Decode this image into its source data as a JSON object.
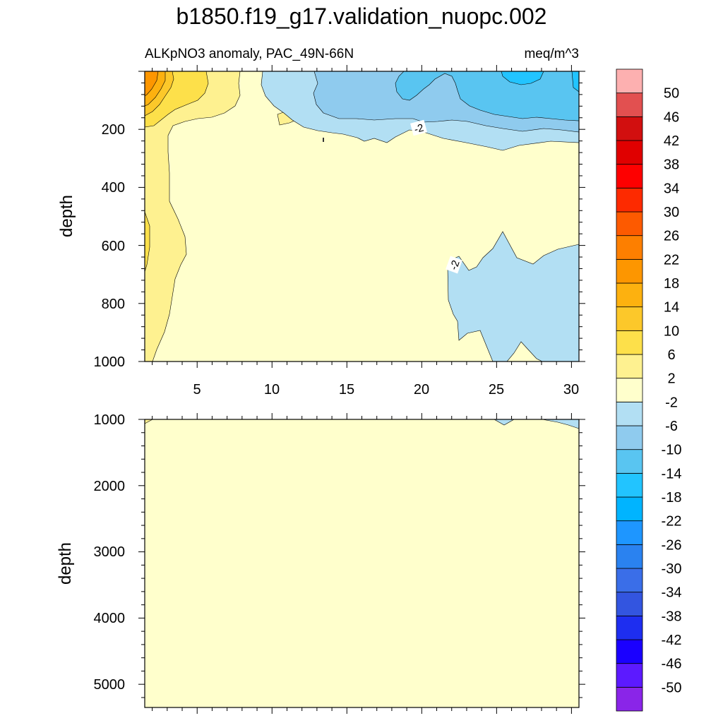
{
  "chart_data": {
    "type": "contour",
    "title": "b1850.f19_g17.validation_nuopc.002",
    "colors": [
      "#8a25e8",
      "#5c1aff",
      "#1a00ff",
      "#1e2ef0",
      "#3355e0",
      "#3a6ee8",
      "#2a82f0",
      "#1e96ff",
      "#00b4ff",
      "#22c4ff",
      "#59c5f1",
      "#8fcbee",
      "#b2dff3",
      "#ffffcc",
      "#fef190",
      "#fde04a",
      "#fcc82a",
      "#fdb10f",
      "#fd9600",
      "#fd7f00",
      "#fd5a00",
      "#fd2a00",
      "#fe0000",
      "#e00000",
      "#d20f0f",
      "#e25050",
      "#fdb0b0"
    ],
    "panels": [
      {
        "name": "upper",
        "subtitle_left": "ALKpNO3 anomaly, PAC_49N-66N",
        "subtitle_right": "meq/m^3",
        "ylabel": "depth",
        "xlim": [
          1.5,
          30.5
        ],
        "ylim": [
          0,
          1000
        ],
        "y_inverted": true,
        "xticks": [
          "5",
          "10",
          "15",
          "20",
          "25",
          "30"
        ],
        "yticks": [
          "200",
          "400",
          "600",
          "800",
          "1000"
        ],
        "contour_labels": [
          "-2",
          "-2"
        ]
      },
      {
        "name": "lower",
        "ylabel": "depth",
        "xlim": [
          1.5,
          30.5
        ],
        "ylim": [
          1000,
          5350
        ],
        "y_inverted": true,
        "yticks": [
          "1000",
          "2000",
          "3000",
          "4000",
          "5000"
        ]
      }
    ],
    "colorbar": {
      "labels": [
        "50",
        "46",
        "42",
        "38",
        "34",
        "30",
        "26",
        "22",
        "18",
        "14",
        "10",
        "6",
        "2",
        "-2",
        "-6",
        "-10",
        "-14",
        "-18",
        "-22",
        "-26",
        "-30",
        "-34",
        "-38",
        "-42",
        "-46",
        "-50"
      ]
    }
  }
}
